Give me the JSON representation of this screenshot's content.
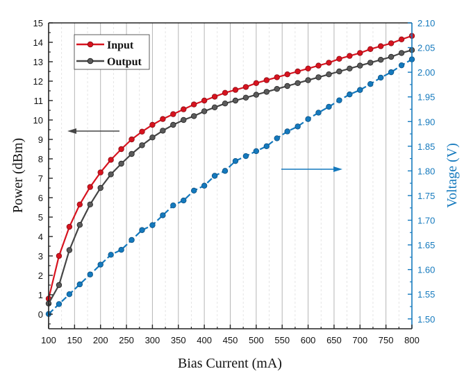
{
  "chart_data": {
    "type": "line",
    "xlabel": "Bias Current (mA)",
    "ylabel": "Power (dBm)",
    "y2label": "Voltage (V)",
    "xlim": [
      100,
      800
    ],
    "ylim": [
      -0.75,
      15
    ],
    "y2lim": [
      1.48,
      2.1
    ],
    "xticks": [
      100,
      150,
      200,
      250,
      300,
      350,
      400,
      450,
      500,
      550,
      600,
      650,
      700,
      750,
      800
    ],
    "yticks": [
      0,
      1,
      2,
      3,
      4,
      5,
      6,
      7,
      8,
      9,
      10,
      11,
      12,
      13,
      14,
      15
    ],
    "y2ticks": [
      "1.50",
      "1.55",
      "1.60",
      "1.65",
      "1.70",
      "1.75",
      "1.80",
      "1.85",
      "1.90",
      "1.95",
      "2.00",
      "2.05",
      "2.10"
    ],
    "grid": "vertical",
    "legend_position": "top-left",
    "x": [
      100,
      120,
      140,
      160,
      180,
      200,
      220,
      240,
      260,
      280,
      300,
      320,
      340,
      360,
      380,
      400,
      420,
      440,
      460,
      480,
      500,
      520,
      540,
      560,
      580,
      600,
      620,
      640,
      660,
      680,
      700,
      720,
      740,
      760,
      780,
      800
    ],
    "series": [
      {
        "name": "Input",
        "axis": "left",
        "color": "#d7131f",
        "values": [
          0.8,
          3.0,
          4.5,
          5.65,
          6.55,
          7.3,
          7.95,
          8.5,
          9.0,
          9.4,
          9.75,
          10.05,
          10.3,
          10.55,
          10.8,
          11.0,
          11.2,
          11.4,
          11.55,
          11.7,
          11.9,
          12.05,
          12.2,
          12.35,
          12.5,
          12.65,
          12.8,
          12.95,
          13.15,
          13.3,
          13.45,
          13.65,
          13.8,
          13.95,
          14.15,
          14.33
        ]
      },
      {
        "name": "Output",
        "axis": "left",
        "color": "#454545",
        "values": [
          0.55,
          1.5,
          3.3,
          4.6,
          5.65,
          6.5,
          7.2,
          7.75,
          8.25,
          8.7,
          9.1,
          9.45,
          9.75,
          10.0,
          10.2,
          10.45,
          10.65,
          10.85,
          11.0,
          11.15,
          11.3,
          11.45,
          11.6,
          11.75,
          11.9,
          12.05,
          12.2,
          12.35,
          12.5,
          12.65,
          12.8,
          12.95,
          13.1,
          13.25,
          13.45,
          13.6
        ]
      },
      {
        "axis": "right",
        "color": "#1479bd",
        "line_style": "dashed",
        "values": [
          1.51,
          1.53,
          1.55,
          1.57,
          1.59,
          1.61,
          1.63,
          1.64,
          1.66,
          1.68,
          1.69,
          1.71,
          1.73,
          1.74,
          1.76,
          1.77,
          1.79,
          1.8,
          1.82,
          1.83,
          1.84,
          1.85,
          1.866,
          1.88,
          1.89,
          1.905,
          1.918,
          1.93,
          1.943,
          1.955,
          1.964,
          1.976,
          1.989,
          2.0,
          2.014,
          2.026
        ]
      }
    ],
    "annotations": [
      {
        "type": "arrow",
        "direction": "left",
        "meaning": "power curves use left axis",
        "color": "#454545"
      },
      {
        "type": "arrow",
        "direction": "right",
        "meaning": "voltage curve uses right axis",
        "color": "#1479bd"
      }
    ]
  }
}
